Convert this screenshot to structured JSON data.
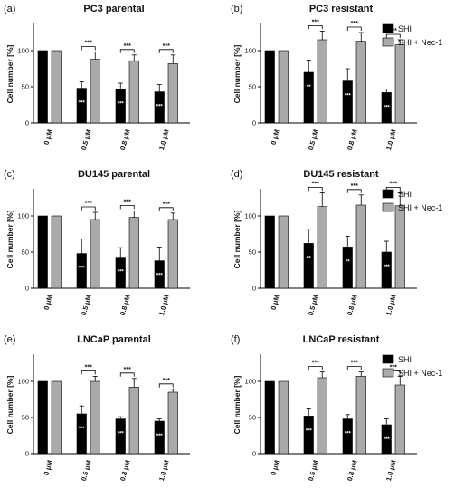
{
  "colors": {
    "shi": "#000000",
    "shi_nec1": "#aaaaaa",
    "axis": "#000000"
  },
  "legend": {
    "items": [
      {
        "label": "SHI",
        "color": "#000000"
      },
      {
        "label": "SHI + Nec-1",
        "color": "#aaaaaa"
      }
    ]
  },
  "chart_data": [
    {
      "panel": "(a)",
      "title": "PC3 parental",
      "type": "bar",
      "categories": [
        "0 μM",
        "0.5 μM",
        "0.8 μM",
        "1.0 μM"
      ],
      "ylabel": "Cell number [%]",
      "ylim": [
        0,
        135
      ],
      "yticks": [
        0,
        50,
        100
      ],
      "series": [
        {
          "name": "SHI",
          "values": [
            100,
            48,
            47,
            43
          ],
          "errors": [
            0,
            9,
            8,
            10
          ]
        },
        {
          "name": "SHI + Nec-1",
          "values": [
            100,
            88,
            86,
            82
          ],
          "errors": [
            0,
            10,
            8,
            12
          ]
        }
      ],
      "sig_brackets": [
        "***",
        "***",
        "***"
      ],
      "inbar_labels": [
        "",
        "***",
        "***",
        "***"
      ],
      "legend": false
    },
    {
      "panel": "(b)",
      "title": "PC3 resistant",
      "type": "bar",
      "categories": [
        "0 μM",
        "0.5 μM",
        "0.8 μM",
        "1.0 μM"
      ],
      "ylabel": "Cell number [%]",
      "ylim": [
        0,
        135
      ],
      "yticks": [
        0,
        50,
        100
      ],
      "series": [
        {
          "name": "SHI",
          "values": [
            100,
            70,
            58,
            42
          ],
          "errors": [
            0,
            17,
            17,
            5
          ]
        },
        {
          "name": "SHI + Nec-1",
          "values": [
            100,
            115,
            113,
            108
          ],
          "errors": [
            0,
            12,
            12,
            7
          ]
        }
      ],
      "sig_brackets": [
        "***",
        "***",
        "***"
      ],
      "inbar_labels": [
        "",
        "**",
        "***",
        "***"
      ],
      "legend": true
    },
    {
      "panel": "(c)",
      "title": "DU145 parental",
      "type": "bar",
      "categories": [
        "0 μM",
        "0.5 μM",
        "0.8 μM",
        "1.0 μM"
      ],
      "ylabel": "Cell number [%]",
      "ylim": [
        0,
        135
      ],
      "yticks": [
        0,
        50,
        100
      ],
      "series": [
        {
          "name": "SHI",
          "values": [
            100,
            48,
            43,
            38
          ],
          "errors": [
            0,
            20,
            13,
            19
          ]
        },
        {
          "name": "SHI + Nec-1",
          "values": [
            100,
            95,
            98,
            95
          ],
          "errors": [
            0,
            10,
            9,
            9
          ]
        }
      ],
      "sig_brackets": [
        "***",
        "***",
        "***"
      ],
      "inbar_labels": [
        "",
        "***",
        "***",
        "***"
      ],
      "legend": false
    },
    {
      "panel": "(d)",
      "title": "DU145 resistant",
      "type": "bar",
      "categories": [
        "0 μM",
        "0.5 μM",
        "0.8 μM",
        "1.0 μM"
      ],
      "ylabel": "Cell number [%]",
      "ylim": [
        0,
        135
      ],
      "yticks": [
        0,
        50,
        100
      ],
      "series": [
        {
          "name": "SHI",
          "values": [
            100,
            62,
            57,
            50
          ],
          "errors": [
            0,
            19,
            15,
            15
          ]
        },
        {
          "name": "SHI + Nec-1",
          "values": [
            100,
            113,
            115,
            114
          ],
          "errors": [
            0,
            19,
            14,
            18
          ]
        }
      ],
      "sig_brackets": [
        "***",
        "***",
        "***"
      ],
      "inbar_labels": [
        "",
        "**",
        "**",
        "***"
      ],
      "legend": true
    },
    {
      "panel": "(e)",
      "title": "LNCaP parental",
      "type": "bar",
      "categories": [
        "0 μM",
        "0.5 μM",
        "0.8 μM",
        "1.0 μM"
      ],
      "ylabel": "Cell number [%]",
      "ylim": [
        0,
        135
      ],
      "yticks": [
        0,
        50,
        100
      ],
      "series": [
        {
          "name": "SHI",
          "values": [
            100,
            55,
            48,
            45
          ],
          "errors": [
            0,
            11,
            3,
            3
          ]
        },
        {
          "name": "SHI + Nec-1",
          "values": [
            100,
            100,
            92,
            85
          ],
          "errors": [
            0,
            7,
            12,
            4
          ]
        }
      ],
      "sig_brackets": [
        "***",
        "***",
        "***"
      ],
      "inbar_labels": [
        "",
        "***",
        "***",
        "***"
      ],
      "legend": false
    },
    {
      "panel": "(f)",
      "title": "LNCaP resistant",
      "type": "bar",
      "categories": [
        "0 μM",
        "0.5 μM",
        "0.8 μM",
        "1.0 μM"
      ],
      "ylabel": "Cell number [%]",
      "ylim": [
        0,
        135
      ],
      "yticks": [
        0,
        50,
        100
      ],
      "series": [
        {
          "name": "SHI",
          "values": [
            100,
            52,
            48,
            40
          ],
          "errors": [
            0,
            10,
            6,
            8
          ]
        },
        {
          "name": "SHI + Nec-1",
          "values": [
            100,
            105,
            107,
            95
          ],
          "errors": [
            0,
            8,
            6,
            12
          ]
        }
      ],
      "sig_brackets": [
        "***",
        "***",
        "***"
      ],
      "inbar_labels": [
        "",
        "***",
        "***",
        "***"
      ],
      "legend": true
    }
  ]
}
